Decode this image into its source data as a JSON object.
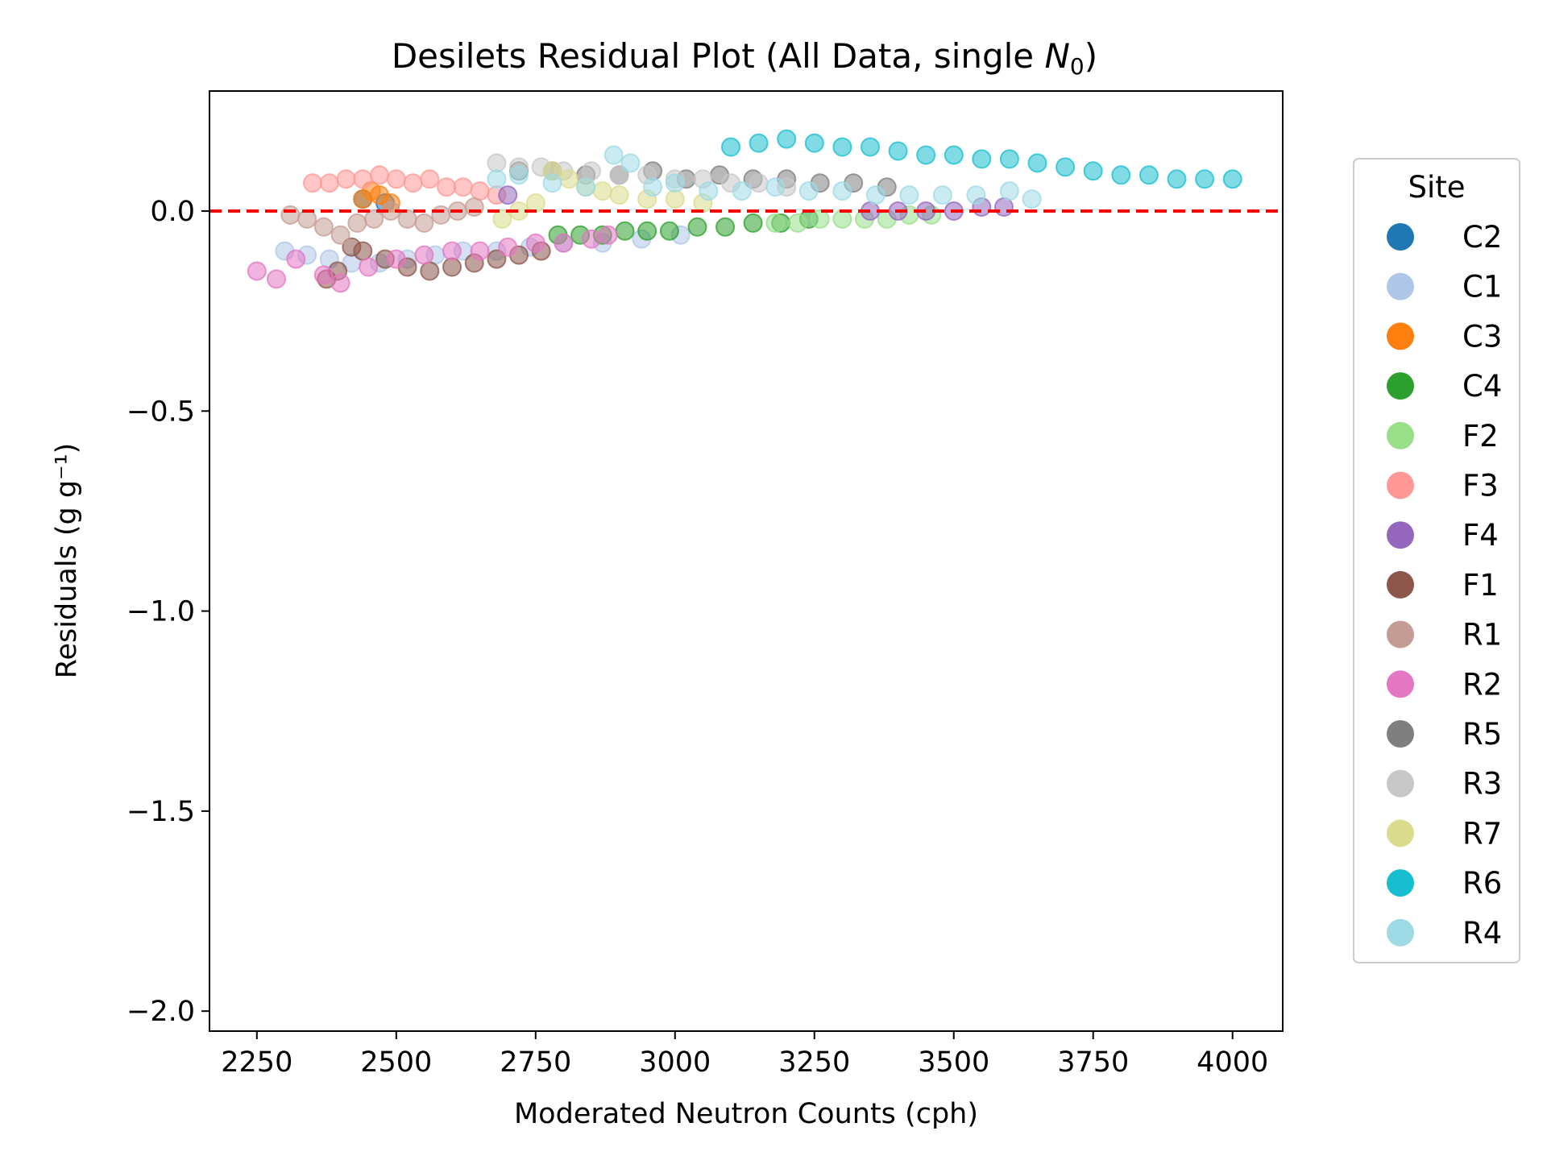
{
  "chart_data": {
    "type": "scatter",
    "title": "Desilets Residual Plot (All Data, single N₀)",
    "title_prefix": "Desilets Residual Plot (All Data, single ",
    "title_symbol": "N",
    "title_subscript": "0",
    "title_suffix": ")",
    "xlabel": "Moderated Neutron Counts (cph)",
    "ylabel": "Residuals (g g⁻¹)",
    "xlim": [
      2165,
      4090
    ],
    "ylim": [
      -2.05,
      0.3
    ],
    "xticks": [
      2250,
      2500,
      2750,
      3000,
      3250,
      3500,
      3750,
      4000
    ],
    "xtick_labels": [
      "2250",
      "2500",
      "2750",
      "3000",
      "3250",
      "3500",
      "3750",
      "4000"
    ],
    "yticks": [
      0.0,
      -0.5,
      -1.0,
      -1.5,
      -2.0
    ],
    "ytick_labels": [
      "0.0",
      "−0.5",
      "−1.0",
      "−1.5",
      "−2.0"
    ],
    "reference_line": {
      "y": 0.0,
      "color": "#ff0000",
      "style": "dashed"
    },
    "legend": {
      "title": "Site",
      "placement": "outside-right"
    },
    "grid": false,
    "series": [
      {
        "name": "C2",
        "color": "#1f77b4",
        "x": [
          2440,
          2480
        ],
        "y": [
          0.03,
          0.02
        ]
      },
      {
        "name": "C1",
        "color": "#aec7e8",
        "x": [
          2300,
          2340,
          2380,
          2420,
          2470,
          2520,
          2570,
          2620,
          2680,
          2740,
          2800,
          2870,
          2940,
          3010
        ],
        "y": [
          -0.1,
          -0.11,
          -0.12,
          -0.13,
          -0.13,
          -0.12,
          -0.11,
          -0.1,
          -0.1,
          -0.09,
          -0.08,
          -0.08,
          -0.07,
          -0.06
        ]
      },
      {
        "name": "C3",
        "color": "#ff7f0e",
        "x": [
          2440,
          2455,
          2470,
          2490
        ],
        "y": [
          0.03,
          0.05,
          0.04,
          0.02
        ]
      },
      {
        "name": "C4",
        "color": "#2ca02c",
        "x": [
          2790,
          2830,
          2870,
          2910,
          2950,
          2990,
          3040,
          3090,
          3140,
          3190,
          3240
        ],
        "y": [
          -0.06,
          -0.06,
          -0.06,
          -0.05,
          -0.05,
          -0.05,
          -0.04,
          -0.04,
          -0.03,
          -0.03,
          -0.02
        ]
      },
      {
        "name": "F2",
        "color": "#98df8a",
        "x": [
          3180,
          3220,
          3260,
          3300,
          3340,
          3380,
          3420,
          3460
        ],
        "y": [
          -0.03,
          -0.03,
          -0.02,
          -0.02,
          -0.02,
          -0.02,
          -0.01,
          -0.01
        ]
      },
      {
        "name": "F3",
        "color": "#ff9896",
        "x": [
          2350,
          2380,
          2410,
          2440,
          2470,
          2500,
          2530,
          2560,
          2590,
          2620,
          2650,
          2680
        ],
        "y": [
          0.07,
          0.07,
          0.08,
          0.08,
          0.09,
          0.08,
          0.07,
          0.08,
          0.06,
          0.06,
          0.05,
          0.04
        ]
      },
      {
        "name": "F4",
        "color": "#9467bd",
        "x": [
          2700,
          3350,
          3400,
          3450,
          3500,
          3550,
          3590
        ],
        "y": [
          0.04,
          0.0,
          0.0,
          0.0,
          0.0,
          0.01,
          0.01
        ]
      },
      {
        "name": "F1",
        "color": "#8c564b",
        "x": [
          2375,
          2395,
          2420,
          2440,
          2480,
          2520,
          2560,
          2600,
          2640,
          2680,
          2720,
          2760
        ],
        "y": [
          -0.17,
          -0.15,
          -0.09,
          -0.1,
          -0.12,
          -0.14,
          -0.15,
          -0.14,
          -0.13,
          -0.12,
          -0.11,
          -0.1
        ]
      },
      {
        "name": "R1",
        "color": "#c49c94",
        "x": [
          2310,
          2340,
          2370,
          2400,
          2430,
          2460,
          2490,
          2520,
          2550,
          2580,
          2610,
          2640
        ],
        "y": [
          -0.01,
          -0.02,
          -0.04,
          -0.06,
          -0.03,
          -0.02,
          0.0,
          -0.02,
          -0.03,
          -0.01,
          0.0,
          0.01
        ]
      },
      {
        "name": "R2",
        "color": "#e377c2",
        "x": [
          2250,
          2285,
          2320,
          2370,
          2400,
          2450,
          2500,
          2550,
          2600,
          2650,
          2700,
          2750,
          2800,
          2850,
          2880
        ],
        "y": [
          -0.15,
          -0.17,
          -0.12,
          -0.16,
          -0.18,
          -0.14,
          -0.12,
          -0.11,
          -0.1,
          -0.1,
          -0.09,
          -0.08,
          -0.08,
          -0.07,
          -0.06
        ]
      },
      {
        "name": "R5",
        "color": "#7f7f7f",
        "x": [
          2720,
          2780,
          2840,
          2900,
          2960,
          3020,
          3080,
          3140,
          3200,
          3260,
          3320,
          3380
        ],
        "y": [
          0.1,
          0.1,
          0.09,
          0.09,
          0.1,
          0.08,
          0.09,
          0.08,
          0.08,
          0.07,
          0.07,
          0.06
        ]
      },
      {
        "name": "R3",
        "color": "#c7c7c7",
        "x": [
          2680,
          2720,
          2760,
          2800,
          2850,
          2900,
          2950,
          3000,
          3050,
          3100,
          3150,
          3200
        ],
        "y": [
          0.12,
          0.11,
          0.11,
          0.1,
          0.1,
          0.09,
          0.09,
          0.08,
          0.08,
          0.07,
          0.07,
          0.06
        ]
      },
      {
        "name": "R7",
        "color": "#dbdb8d",
        "x": [
          2690,
          2720,
          2750,
          2780,
          2810,
          2840,
          2870,
          2900,
          2950,
          3000,
          3050
        ],
        "y": [
          -0.02,
          0.0,
          0.02,
          0.1,
          0.08,
          0.06,
          0.05,
          0.04,
          0.03,
          0.03,
          0.02
        ]
      },
      {
        "name": "R6",
        "color": "#17becf",
        "x": [
          3100,
          3150,
          3200,
          3250,
          3300,
          3350,
          3400,
          3450,
          3500,
          3550,
          3600,
          3650,
          3700,
          3750,
          3800,
          3850,
          3900,
          3950,
          4000
        ],
        "y": [
          0.16,
          0.17,
          0.18,
          0.17,
          0.16,
          0.16,
          0.15,
          0.14,
          0.14,
          0.13,
          0.13,
          0.12,
          0.11,
          0.1,
          0.09,
          0.09,
          0.08,
          0.08,
          0.08
        ]
      },
      {
        "name": "R4",
        "color": "#9edae5",
        "x": [
          2680,
          2720,
          2780,
          2840,
          2890,
          2920,
          2960,
          3000,
          3060,
          3120,
          3180,
          3240,
          3300,
          3360,
          3420,
          3480,
          3540,
          3600,
          3640
        ],
        "y": [
          0.08,
          0.09,
          0.07,
          0.06,
          0.14,
          0.12,
          0.06,
          0.07,
          0.05,
          0.05,
          0.06,
          0.05,
          0.05,
          0.04,
          0.04,
          0.04,
          0.04,
          0.05,
          0.03
        ]
      }
    ]
  }
}
